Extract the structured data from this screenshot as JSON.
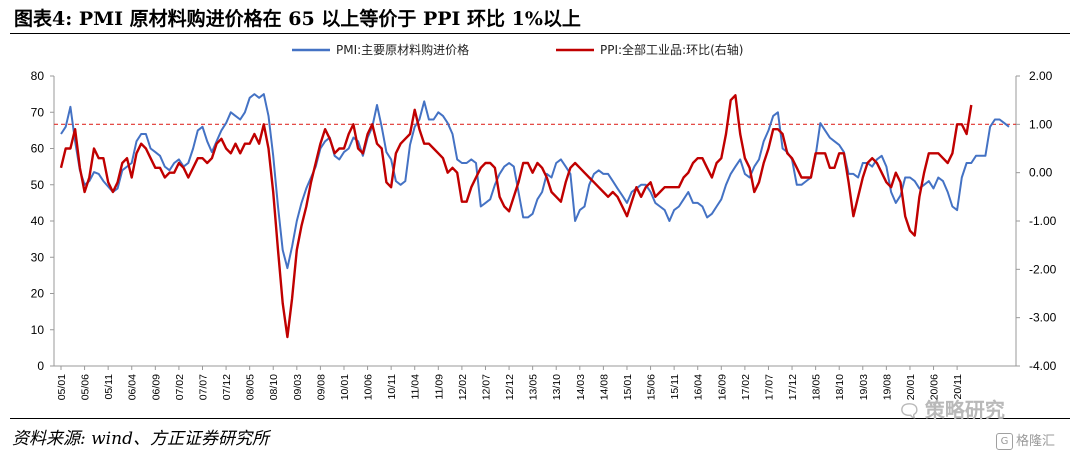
{
  "header": {
    "title": "图表4:   PMI 原材料购进价格在 65 以上等价于 PPI 环比 1%以上"
  },
  "footer": {
    "source": "资料来源: wind、方正证券研究所"
  },
  "watermarks": {
    "strategy": "策略研究",
    "strategy_icon": "wechat-bubble-icon",
    "gelonghui": "格隆汇",
    "gelonghui_icon": "G"
  },
  "chart_data": {
    "type": "line",
    "title": "",
    "xlabel": "",
    "ylabel": "",
    "y_left": {
      "range": [
        0,
        80
      ],
      "ticks": [
        "0",
        "10",
        "20",
        "30",
        "40",
        "50",
        "60",
        "70",
        "80"
      ]
    },
    "y_right": {
      "range": [
        -4,
        2
      ],
      "ticks": [
        "-4.00",
        "-3.00",
        "-2.00",
        "-1.00",
        "0.00",
        "1.00",
        "2.00"
      ]
    },
    "x_tick_labels": [
      "05/01",
      "05/06",
      "05/11",
      "06/04",
      "06/09",
      "07/02",
      "07/07",
      "07/12",
      "08/05",
      "08/10",
      "09/03",
      "09/08",
      "10/01",
      "10/06",
      "10/11",
      "11/04",
      "11/09",
      "12/02",
      "12/07",
      "12/12",
      "13/05",
      "13/10",
      "14/03",
      "14/08",
      "15/01",
      "15/06",
      "15/11",
      "16/04",
      "16/09",
      "17/02",
      "17/07",
      "17/12",
      "18/05",
      "18/10",
      "19/03",
      "19/08",
      "20/01",
      "20/06",
      "20/11"
    ],
    "reference_line": {
      "axis": "right",
      "value": 1.0,
      "color": "#e0342f",
      "style": "dashed"
    },
    "legend_position": "top",
    "series": [
      {
        "name": "PMI:主要原材料购进价格",
        "axis": "left",
        "color": "#4472c4",
        "start": "2005-01",
        "values": [
          64,
          66,
          71.5,
          62,
          54,
          50,
          51,
          53.5,
          53,
          51,
          49.5,
          48,
          49,
          54,
          55,
          56,
          62,
          64,
          64,
          60,
          59,
          58,
          55,
          54,
          56,
          57,
          55,
          56,
          60,
          65,
          66,
          62,
          59,
          62,
          65,
          67,
          70,
          69,
          68,
          70,
          74,
          75,
          74,
          75,
          69,
          58,
          44,
          32,
          27,
          33,
          40,
          45,
          49,
          52,
          55,
          60,
          62,
          63,
          58,
          57,
          59,
          60,
          63,
          62,
          58,
          63,
          66,
          72,
          66,
          59,
          57,
          51,
          50,
          51,
          61,
          66,
          68,
          73,
          68,
          68,
          70,
          69,
          67,
          64,
          57,
          56,
          56,
          57,
          56,
          44,
          45,
          46,
          50,
          53,
          55,
          56,
          55,
          48,
          41,
          41,
          42,
          46,
          48,
          53,
          52,
          56,
          57,
          55,
          53,
          40,
          43,
          44,
          50,
          53,
          54,
          53,
          53,
          51,
          49,
          47,
          45,
          48,
          49,
          50,
          50,
          48,
          45,
          44,
          43,
          40,
          43,
          44,
          46,
          48,
          45,
          45,
          44,
          41,
          42,
          44,
          46,
          50,
          53,
          55,
          57,
          53,
          52,
          55,
          57,
          62,
          65,
          69,
          70,
          60,
          59,
          57,
          50,
          50,
          51,
          52,
          58,
          67,
          65,
          63,
          62,
          61,
          59,
          53,
          53,
          52,
          56,
          56,
          55,
          57,
          58,
          55,
          48,
          45,
          47,
          52,
          52,
          51,
          49,
          50,
          51,
          49,
          52,
          51,
          48,
          44,
          43,
          52,
          56,
          56,
          58,
          58,
          58,
          66,
          68,
          68,
          67,
          66
        ]
      },
      {
        "name": "PPI:全部工业品:环比(右轴)",
        "axis": "right",
        "color": "#c00000",
        "start": "2005-01",
        "values": [
          0.1,
          0.5,
          0.5,
          0.9,
          0.1,
          -0.4,
          -0.1,
          0.5,
          0.3,
          0.3,
          -0.2,
          -0.4,
          -0.2,
          0.2,
          0.3,
          -0.1,
          0.4,
          0.6,
          0.5,
          0.3,
          0.1,
          0.1,
          -0.1,
          0.0,
          0.0,
          0.2,
          0.1,
          -0.1,
          0.1,
          0.3,
          0.3,
          0.2,
          0.3,
          0.6,
          0.7,
          0.5,
          0.4,
          0.6,
          0.4,
          0.6,
          0.6,
          0.8,
          0.6,
          1.0,
          0.5,
          -0.4,
          -1.6,
          -2.7,
          -3.4,
          -2.6,
          -1.6,
          -1.1,
          -0.7,
          -0.2,
          0.2,
          0.6,
          0.9,
          0.7,
          0.4,
          0.5,
          0.5,
          0.8,
          1.0,
          0.5,
          0.4,
          0.8,
          1.0,
          0.6,
          0.5,
          -0.2,
          -0.3,
          0.4,
          0.6,
          0.7,
          0.8,
          1.3,
          0.9,
          0.6,
          0.6,
          0.5,
          0.4,
          0.3,
          0.0,
          0.1,
          0.0,
          -0.6,
          -0.6,
          -0.3,
          -0.1,
          0.1,
          0.2,
          0.2,
          0.1,
          -0.5,
          -0.7,
          -0.8,
          -0.5,
          -0.2,
          0.2,
          0.2,
          0.0,
          0.2,
          0.1,
          -0.1,
          -0.4,
          -0.5,
          -0.6,
          -0.2,
          0.1,
          0.2,
          0.1,
          0.0,
          -0.1,
          -0.2,
          -0.3,
          -0.4,
          -0.5,
          -0.4,
          -0.5,
          -0.7,
          -0.9,
          -0.6,
          -0.3,
          -0.5,
          -0.3,
          -0.2,
          -0.5,
          -0.4,
          -0.3,
          -0.3,
          -0.3,
          -0.3,
          -0.1,
          0.0,
          0.2,
          0.3,
          0.3,
          0.1,
          -0.1,
          0.2,
          0.3,
          0.8,
          1.5,
          1.6,
          0.8,
          0.3,
          0.1,
          -0.4,
          -0.2,
          0.2,
          0.5,
          0.9,
          0.9,
          0.8,
          0.4,
          0.3,
          0.1,
          -0.1,
          -0.1,
          -0.1,
          0.4,
          0.4,
          0.4,
          0.1,
          0.1,
          0.4,
          0.4,
          -0.2,
          -0.9,
          -0.5,
          -0.1,
          0.2,
          0.3,
          0.2,
          0.0,
          -0.2,
          -0.3,
          0.0,
          -0.2,
          -0.9,
          -1.2,
          -1.3,
          -0.5,
          0.0,
          0.4,
          0.4,
          0.4,
          0.3,
          0.2,
          0.4,
          1.0,
          1.0,
          0.8,
          1.4
        ]
      }
    ]
  }
}
